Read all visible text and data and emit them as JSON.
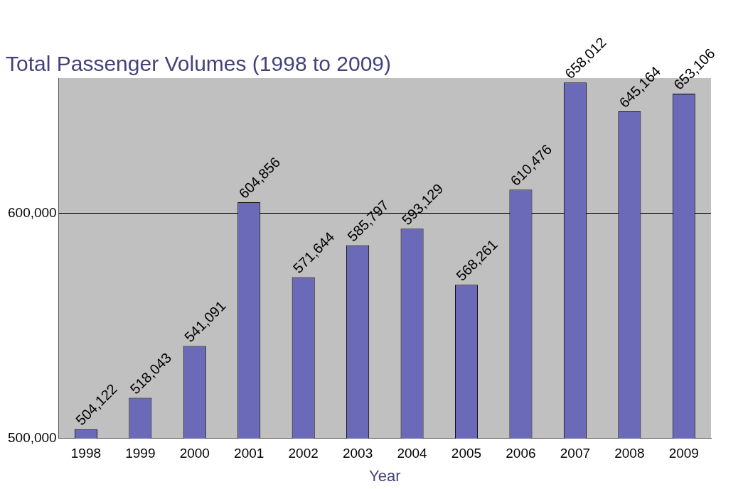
{
  "chart_data": {
    "type": "bar",
    "title": "Total Passenger Volumes (1998 to 2009)",
    "xlabel": "Year",
    "categories": [
      "1998",
      "1999",
      "2000",
      "2001",
      "2002",
      "2003",
      "2004",
      "2005",
      "2006",
      "2007",
      "2008",
      "2009"
    ],
    "values": [
      504122,
      518043,
      541091,
      604856,
      571644,
      585797,
      593129,
      568261,
      610476,
      658012,
      645164,
      653106
    ],
    "value_labels": [
      "504,122",
      "518,043",
      "541,091",
      "604,856",
      "571,644",
      "585,797",
      "593,129",
      "568,261",
      "610,476",
      "658,012",
      "645,164",
      "653,106"
    ],
    "color": "#6a6ab8",
    "ylim": [
      500000,
      660000
    ],
    "yticks": [
      {
        "value": 500000,
        "label": "500,000"
      },
      {
        "value": 600000,
        "label": "600,000"
      }
    ],
    "grid": "y"
  }
}
